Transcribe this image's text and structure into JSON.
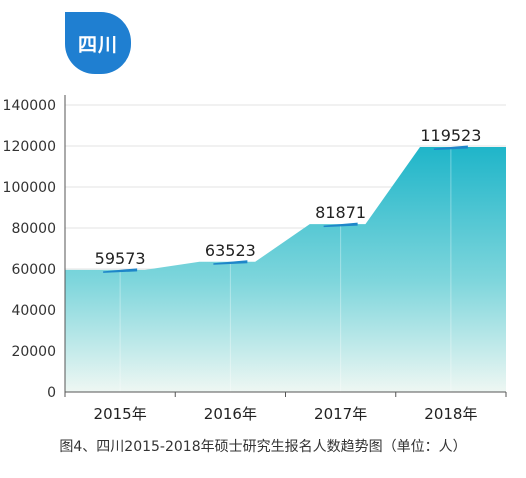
{
  "region_badge": "四川",
  "caption": "图4、四川2015-2018年硕士研究生报名人数趋势图（单位：人）",
  "colors": {
    "badge": "#1f7fd1",
    "area_top": "#1fb5c9",
    "area_bottom": "#e6f4f1",
    "marker": "#1e86c9"
  },
  "chart_data": {
    "type": "area",
    "categories": [
      "2015年",
      "2016年",
      "2017年",
      "2018年"
    ],
    "values": [
      59573,
      63523,
      81871,
      119523
    ],
    "data_labels": [
      "59573",
      "63523",
      "81871",
      "119523"
    ],
    "ylim": [
      0,
      140000
    ],
    "yticks": [
      0,
      20000,
      40000,
      60000,
      80000,
      100000,
      120000,
      140000
    ],
    "ytick_labels": [
      "0",
      "20000",
      "40000",
      "60000",
      "80000",
      "100000",
      "120000",
      "140000"
    ],
    "grid": true,
    "title": "",
    "xlabel": "",
    "ylabel": ""
  }
}
